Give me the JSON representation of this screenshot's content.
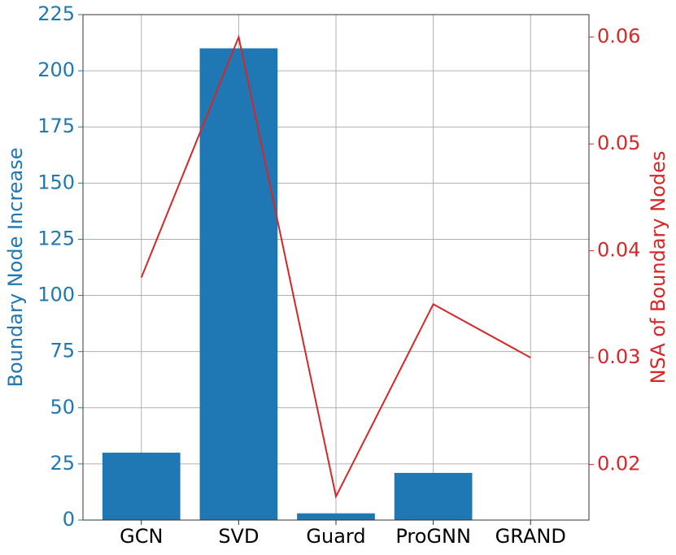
{
  "chart_data": {
    "type": "bar",
    "categories": [
      "GCN",
      "SVD",
      "Guard",
      "ProGNN",
      "GRAND"
    ],
    "xlim": [
      -0.6,
      4.6
    ],
    "ylabel": "Boundary Node Increase",
    "y2label": "NSA of Boundary Nodes",
    "ylim": [
      0,
      225
    ],
    "yticks": [
      0,
      25,
      50,
      75,
      100,
      125,
      150,
      175,
      200,
      225
    ],
    "y2lim": [
      0.0148,
      0.0621
    ],
    "y2ticks": [
      {
        "value": 0.02,
        "label": "0.02"
      },
      {
        "value": 0.03,
        "label": "0.03"
      },
      {
        "value": 0.04,
        "label": "0.04"
      },
      {
        "value": 0.05,
        "label": "0.05"
      },
      {
        "value": 0.06,
        "label": "0.06"
      }
    ],
    "grid": true,
    "series": [
      {
        "type": "bar",
        "color": "#1f77b4",
        "values": [
          30,
          210,
          3,
          21,
          0
        ]
      },
      {
        "type": "line",
        "axis": "y2",
        "color": "#d62728",
        "values": [
          0.0375,
          0.06,
          0.017,
          0.035,
          0.03
        ]
      }
    ]
  }
}
